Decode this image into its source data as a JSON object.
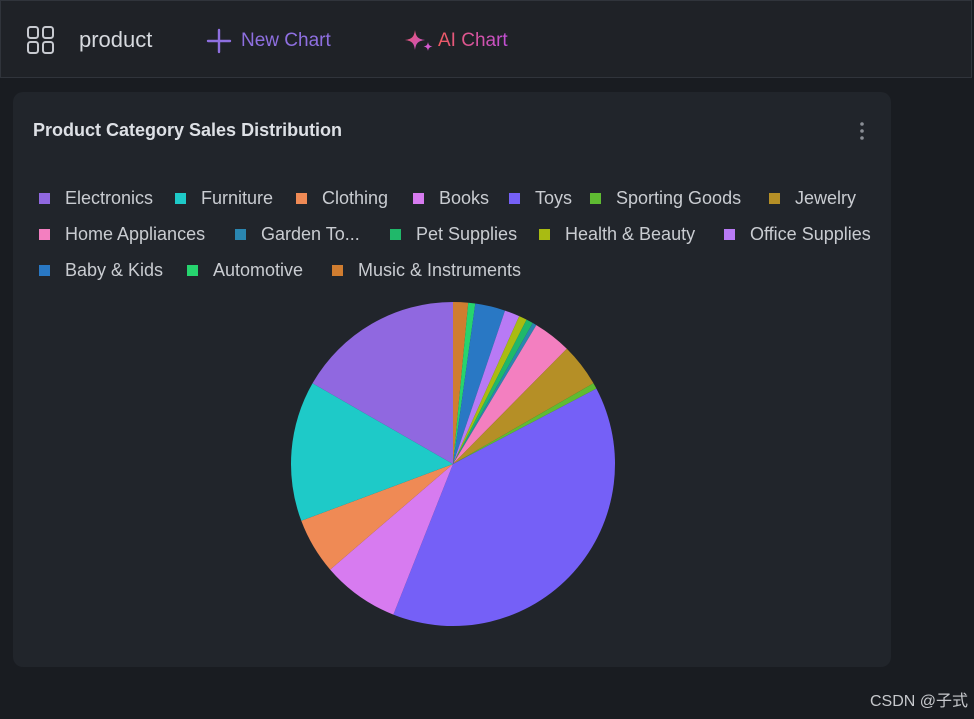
{
  "header": {
    "title": "product",
    "new_chart_label": "New Chart",
    "ai_chart_label": "AI Chart",
    "app_icon": "grid-icon",
    "new_chart_icon": "plus-icon",
    "ai_chart_icon": "sparkle-icon"
  },
  "card": {
    "title": "Product Category Sales Distribution",
    "menu_icon": "more-vertical-icon"
  },
  "legend": [
    {
      "label": "Electronics",
      "color": "#9068e0"
    },
    {
      "label": "Furniture",
      "color": "#1ecac8"
    },
    {
      "label": "Clothing",
      "color": "#ef8a55"
    },
    {
      "label": "Books",
      "color": "#d77bf0"
    },
    {
      "label": "Toys",
      "color": "#7560f7"
    },
    {
      "label": "Sporting Goods",
      "color": "#5fbb32"
    },
    {
      "label": "Jewelry",
      "color": "#b58f26"
    },
    {
      "label": "Home Appliances",
      "color": "#f37fc0"
    },
    {
      "label": "Garden To...",
      "color": "#2a86b0"
    },
    {
      "label": "Pet Supplies",
      "color": "#20b86a"
    },
    {
      "label": "Health & Beauty",
      "color": "#a9bb12"
    },
    {
      "label": "Office Supplies",
      "color": "#b87af5"
    },
    {
      "label": "Baby & Kids",
      "color": "#2978c4"
    },
    {
      "label": "Automotive",
      "color": "#26d46e"
    },
    {
      "label": "Music & Instruments",
      "color": "#d07d30"
    }
  ],
  "chart_data": {
    "type": "pie",
    "title": "Product Category Sales Distribution",
    "start_angle_deg": 0,
    "slices": [
      {
        "label": "Music & Instruments",
        "value": 1.5,
        "color": "#d07d30"
      },
      {
        "label": "Automotive",
        "value": 0.7,
        "color": "#26d46e"
      },
      {
        "label": "Baby & Kids",
        "value": 3.0,
        "color": "#2978c4"
      },
      {
        "label": "Office Supplies",
        "value": 1.5,
        "color": "#b87af5"
      },
      {
        "label": "Health & Beauty",
        "value": 0.8,
        "color": "#a9bb12"
      },
      {
        "label": "Pet Supplies",
        "value": 0.7,
        "color": "#20b86a"
      },
      {
        "label": "Garden To...",
        "value": 0.4,
        "color": "#2a86b0"
      },
      {
        "label": "Home Appliances",
        "value": 3.8,
        "color": "#f37fc0"
      },
      {
        "label": "Jewelry",
        "value": 4.3,
        "color": "#b58f26"
      },
      {
        "label": "Sporting Goods",
        "value": 0.6,
        "color": "#5fbb32"
      },
      {
        "label": "Toys",
        "value": 38.7,
        "color": "#7560f7"
      },
      {
        "label": "Books",
        "value": 7.7,
        "color": "#d77bf0"
      },
      {
        "label": "Clothing",
        "value": 5.6,
        "color": "#ef8a55"
      },
      {
        "label": "Furniture",
        "value": 14.0,
        "color": "#1ecac8"
      },
      {
        "label": "Electronics",
        "value": 16.7,
        "color": "#9068e0"
      }
    ]
  },
  "watermark": "CSDN @子式"
}
